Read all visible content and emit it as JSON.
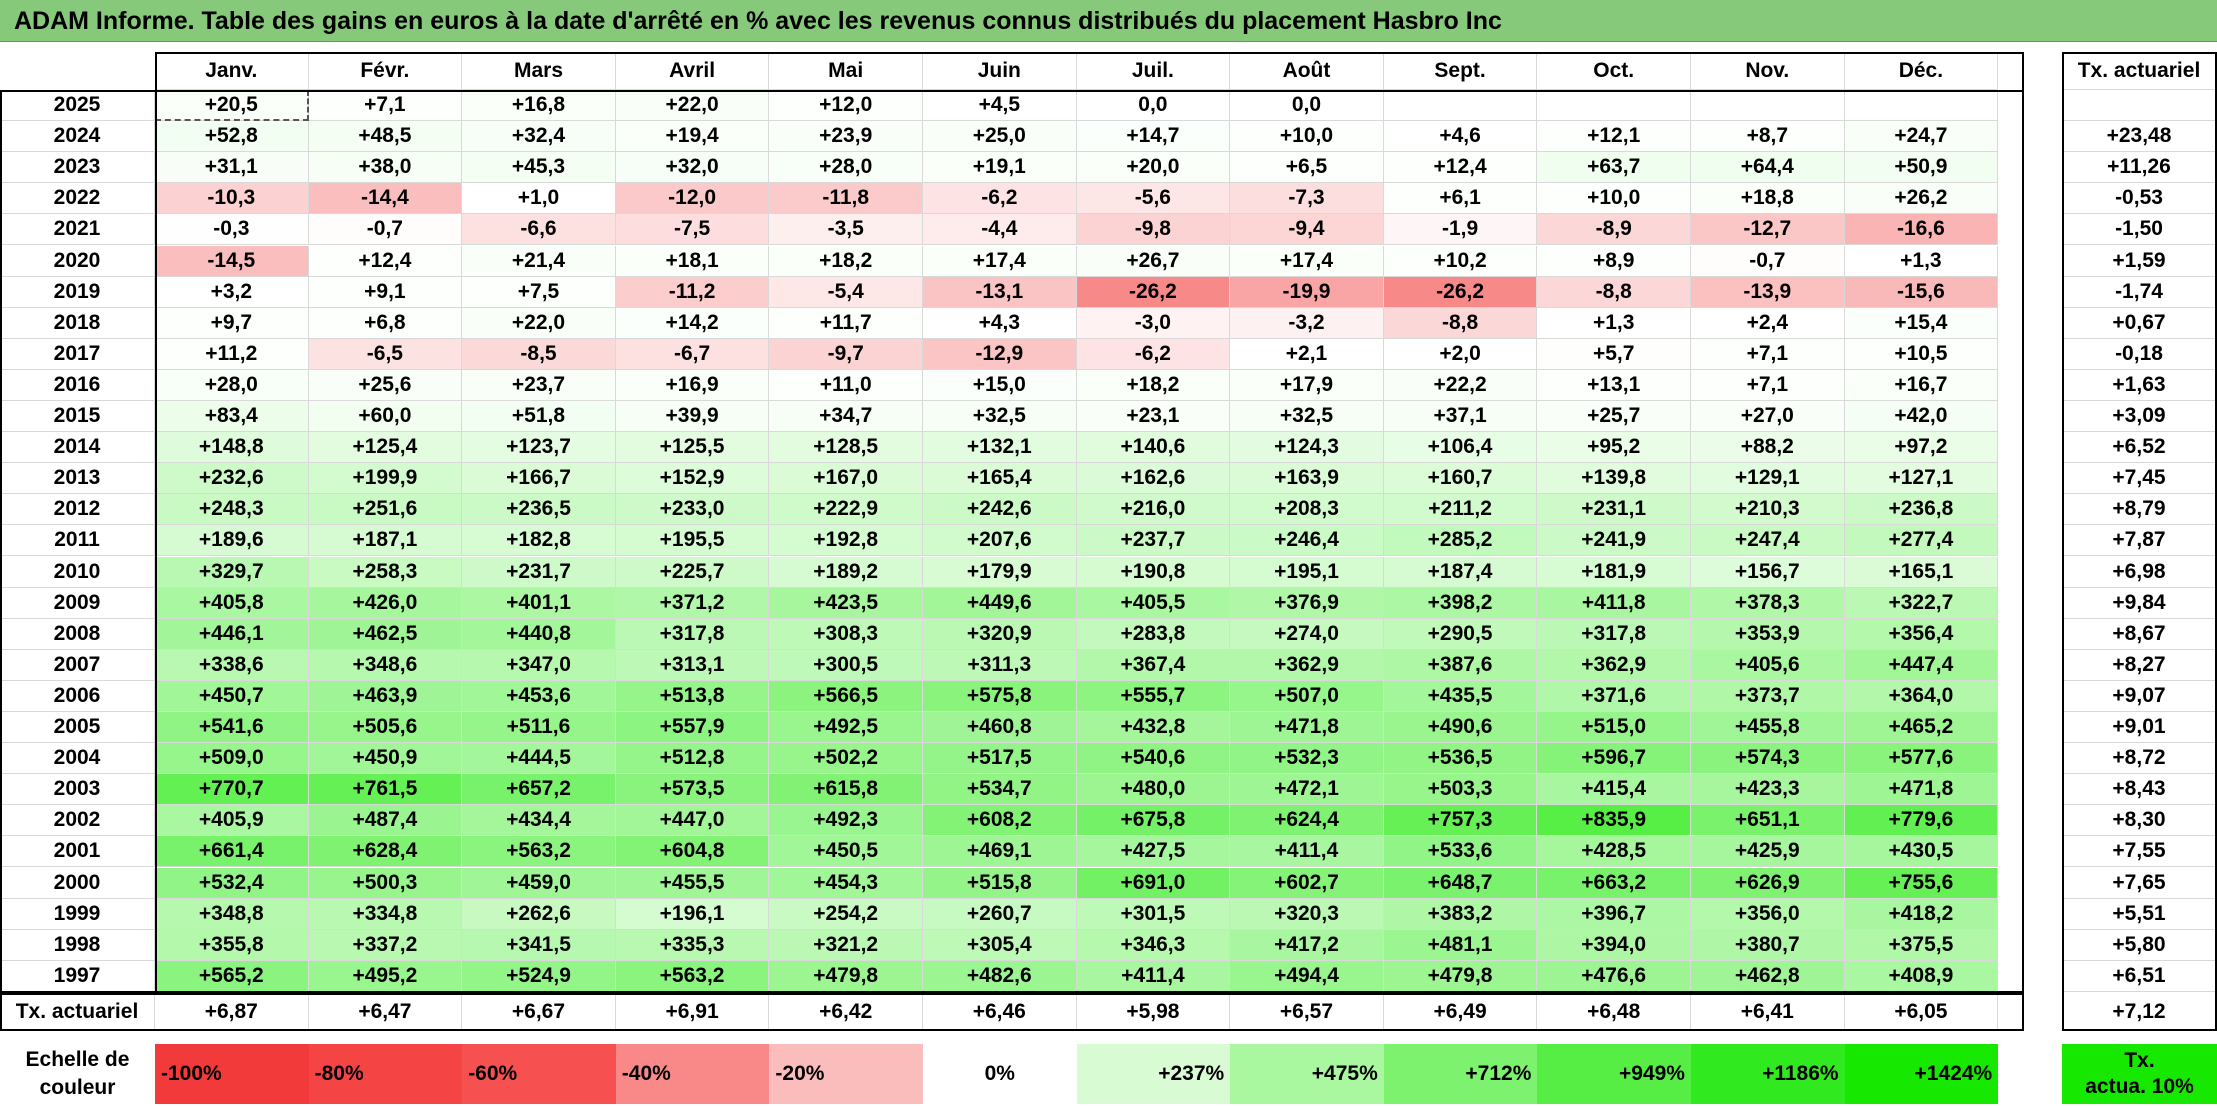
{
  "title": "ADAM Informe. Table des gains en euros à la date d'arrêté en % avec les revenus connus distribués du placement Hasbro Inc",
  "months": [
    "Janv.",
    "Févr.",
    "Mars",
    "Avril",
    "Mai",
    "Juin",
    "Juil.",
    "Août",
    "Sept.",
    "Oct.",
    "Nov.",
    "Déc."
  ],
  "annual_header": "Tx. actuariel",
  "rows": [
    {
      "year": "2025",
      "values": [
        "+20,5",
        "+7,1",
        "+16,8",
        "+22,0",
        "+12,0",
        "+4,5",
        "0,0",
        "0,0",
        "",
        "",
        "",
        ""
      ],
      "annual": ""
    },
    {
      "year": "2024",
      "values": [
        "+52,8",
        "+48,5",
        "+32,4",
        "+19,4",
        "+23,9",
        "+25,0",
        "+14,7",
        "+10,0",
        "+4,6",
        "+12,1",
        "+8,7",
        "+24,7"
      ],
      "annual": "+23,48"
    },
    {
      "year": "2023",
      "values": [
        "+31,1",
        "+38,0",
        "+45,3",
        "+32,0",
        "+28,0",
        "+19,1",
        "+20,0",
        "+6,5",
        "+12,4",
        "+63,7",
        "+64,4",
        "+50,9"
      ],
      "annual": "+11,26"
    },
    {
      "year": "2022",
      "values": [
        "-10,3",
        "-14,4",
        "+1,0",
        "-12,0",
        "-11,8",
        "-6,2",
        "-5,6",
        "-7,3",
        "+6,1",
        "+10,0",
        "+18,8",
        "+26,2"
      ],
      "annual": "-0,53"
    },
    {
      "year": "2021",
      "values": [
        "-0,3",
        "-0,7",
        "-6,6",
        "-7,5",
        "-3,5",
        "-4,4",
        "-9,8",
        "-9,4",
        "-1,9",
        "-8,9",
        "-12,7",
        "-16,6"
      ],
      "annual": "-1,50"
    },
    {
      "year": "2020",
      "values": [
        "-14,5",
        "+12,4",
        "+21,4",
        "+18,1",
        "+18,2",
        "+17,4",
        "+26,7",
        "+17,4",
        "+10,2",
        "+8,9",
        "-0,7",
        "+1,3"
      ],
      "annual": "+1,59"
    },
    {
      "year": "2019",
      "values": [
        "+3,2",
        "+9,1",
        "+7,5",
        "-11,2",
        "-5,4",
        "-13,1",
        "-26,2",
        "-19,9",
        "-26,2",
        "-8,8",
        "-13,9",
        "-15,6"
      ],
      "annual": "-1,74"
    },
    {
      "year": "2018",
      "values": [
        "+9,7",
        "+6,8",
        "+22,0",
        "+14,2",
        "+11,7",
        "+4,3",
        "-3,0",
        "-3,2",
        "-8,8",
        "+1,3",
        "+2,4",
        "+15,4"
      ],
      "annual": "+0,67"
    },
    {
      "year": "2017",
      "values": [
        "+11,2",
        "-6,5",
        "-8,5",
        "-6,7",
        "-9,7",
        "-12,9",
        "-6,2",
        "+2,1",
        "+2,0",
        "+5,7",
        "+7,1",
        "+10,5"
      ],
      "annual": "-0,18"
    },
    {
      "year": "2016",
      "values": [
        "+28,0",
        "+25,6",
        "+23,7",
        "+16,9",
        "+11,0",
        "+15,0",
        "+18,2",
        "+17,9",
        "+22,2",
        "+13,1",
        "+7,1",
        "+16,7"
      ],
      "annual": "+1,63"
    },
    {
      "year": "2015",
      "values": [
        "+83,4",
        "+60,0",
        "+51,8",
        "+39,9",
        "+34,7",
        "+32,5",
        "+23,1",
        "+32,5",
        "+37,1",
        "+25,7",
        "+27,0",
        "+42,0"
      ],
      "annual": "+3,09"
    },
    {
      "year": "2014",
      "values": [
        "+148,8",
        "+125,4",
        "+123,7",
        "+125,5",
        "+128,5",
        "+132,1",
        "+140,6",
        "+124,3",
        "+106,4",
        "+95,2",
        "+88,2",
        "+97,2"
      ],
      "annual": "+6,52"
    },
    {
      "year": "2013",
      "values": [
        "+232,6",
        "+199,9",
        "+166,7",
        "+152,9",
        "+167,0",
        "+165,4",
        "+162,6",
        "+163,9",
        "+160,7",
        "+139,8",
        "+129,1",
        "+127,1"
      ],
      "annual": "+7,45"
    },
    {
      "year": "2012",
      "values": [
        "+248,3",
        "+251,6",
        "+236,5",
        "+233,0",
        "+222,9",
        "+242,6",
        "+216,0",
        "+208,3",
        "+211,2",
        "+231,1",
        "+210,3",
        "+236,8"
      ],
      "annual": "+8,79"
    },
    {
      "year": "2011",
      "values": [
        "+189,6",
        "+187,1",
        "+182,8",
        "+195,5",
        "+192,8",
        "+207,6",
        "+237,7",
        "+246,4",
        "+285,2",
        "+241,9",
        "+247,4",
        "+277,4"
      ],
      "annual": "+7,87"
    },
    {
      "year": "2010",
      "values": [
        "+329,7",
        "+258,3",
        "+231,7",
        "+225,7",
        "+189,2",
        "+179,9",
        "+190,8",
        "+195,1",
        "+187,4",
        "+181,9",
        "+156,7",
        "+165,1"
      ],
      "annual": "+6,98"
    },
    {
      "year": "2009",
      "values": [
        "+405,8",
        "+426,0",
        "+401,1",
        "+371,2",
        "+423,5",
        "+449,6",
        "+405,5",
        "+376,9",
        "+398,2",
        "+411,8",
        "+378,3",
        "+322,7"
      ],
      "annual": "+9,84"
    },
    {
      "year": "2008",
      "values": [
        "+446,1",
        "+462,5",
        "+440,8",
        "+317,8",
        "+308,3",
        "+320,9",
        "+283,8",
        "+274,0",
        "+290,5",
        "+317,8",
        "+353,9",
        "+356,4"
      ],
      "annual": "+8,67"
    },
    {
      "year": "2007",
      "values": [
        "+338,6",
        "+348,6",
        "+347,0",
        "+313,1",
        "+300,5",
        "+311,3",
        "+367,4",
        "+362,9",
        "+387,6",
        "+362,9",
        "+405,6",
        "+447,4"
      ],
      "annual": "+8,27"
    },
    {
      "year": "2006",
      "values": [
        "+450,7",
        "+463,9",
        "+453,6",
        "+513,8",
        "+566,5",
        "+575,8",
        "+555,7",
        "+507,0",
        "+435,5",
        "+371,6",
        "+373,7",
        "+364,0"
      ],
      "annual": "+9,07"
    },
    {
      "year": "2005",
      "values": [
        "+541,6",
        "+505,6",
        "+511,6",
        "+557,9",
        "+492,5",
        "+460,8",
        "+432,8",
        "+471,8",
        "+490,6",
        "+515,0",
        "+455,8",
        "+465,2"
      ],
      "annual": "+9,01"
    },
    {
      "year": "2004",
      "values": [
        "+509,0",
        "+450,9",
        "+444,5",
        "+512,8",
        "+502,2",
        "+517,5",
        "+540,6",
        "+532,3",
        "+536,5",
        "+596,7",
        "+574,3",
        "+577,6"
      ],
      "annual": "+8,72"
    },
    {
      "year": "2003",
      "values": [
        "+770,7",
        "+761,5",
        "+657,2",
        "+573,5",
        "+615,8",
        "+534,7",
        "+480,0",
        "+472,1",
        "+503,3",
        "+415,4",
        "+423,3",
        "+471,8"
      ],
      "annual": "+8,43"
    },
    {
      "year": "2002",
      "values": [
        "+405,9",
        "+487,4",
        "+434,4",
        "+447,0",
        "+492,3",
        "+608,2",
        "+675,8",
        "+624,4",
        "+757,3",
        "+835,9",
        "+651,1",
        "+779,6"
      ],
      "annual": "+8,30"
    },
    {
      "year": "2001",
      "values": [
        "+661,4",
        "+628,4",
        "+563,2",
        "+604,8",
        "+450,5",
        "+469,1",
        "+427,5",
        "+411,4",
        "+533,6",
        "+428,5",
        "+425,9",
        "+430,5"
      ],
      "annual": "+7,55"
    },
    {
      "year": "2000",
      "values": [
        "+532,4",
        "+500,3",
        "+459,0",
        "+455,5",
        "+454,3",
        "+515,8",
        "+691,0",
        "+602,7",
        "+648,7",
        "+663,2",
        "+626,9",
        "+755,6"
      ],
      "annual": "+7,65"
    },
    {
      "year": "1999",
      "values": [
        "+348,8",
        "+334,8",
        "+262,6",
        "+196,1",
        "+254,2",
        "+260,7",
        "+301,5",
        "+320,3",
        "+383,2",
        "+396,7",
        "+356,0",
        "+418,2"
      ],
      "annual": "+5,51"
    },
    {
      "year": "1998",
      "values": [
        "+355,8",
        "+337,2",
        "+341,5",
        "+335,3",
        "+321,2",
        "+305,4",
        "+346,3",
        "+417,2",
        "+481,1",
        "+394,0",
        "+380,7",
        "+375,5"
      ],
      "annual": "+5,80"
    },
    {
      "year": "1997",
      "values": [
        "+565,2",
        "+495,2",
        "+524,9",
        "+563,2",
        "+479,8",
        "+482,6",
        "+411,4",
        "+494,4",
        "+479,8",
        "+476,6",
        "+462,8",
        "+408,9"
      ],
      "annual": "+6,51"
    }
  ],
  "footer": {
    "label": "Tx. actuariel",
    "values": [
      "+6,87",
      "+6,47",
      "+6,67",
      "+6,91",
      "+6,42",
      "+6,46",
      "+5,98",
      "+6,57",
      "+6,49",
      "+6,48",
      "+6,41",
      "+6,05"
    ],
    "annual": "+7,12"
  },
  "legend": {
    "label_line1": "Echelle de",
    "label_line2": "couleur",
    "steps": [
      {
        "text": "-100%",
        "color": "#f23a3a"
      },
      {
        "text": "-80%",
        "color": "#f44444"
      },
      {
        "text": "-60%",
        "color": "#f65050"
      },
      {
        "text": "-40%",
        "color": "#f98989"
      },
      {
        "text": "-20%",
        "color": "#fbbcbc"
      },
      {
        "text": "0%",
        "color": "#ffffff"
      },
      {
        "text": "+237%",
        "color": "#d8fbd4"
      },
      {
        "text": "+475%",
        "color": "#a9f79f"
      },
      {
        "text": "+712%",
        "color": "#7df26f"
      },
      {
        "text": "+949%",
        "color": "#56ee45"
      },
      {
        "text": "+1186%",
        "color": "#30ea1f"
      },
      {
        "text": "+1424%",
        "color": "#16e800"
      }
    ],
    "annual_line1": "Tx.",
    "annual_line2": "actua. 10%",
    "annual_color": "#16e800"
  },
  "scale_range": {
    "min": -100,
    "max": 1424
  }
}
